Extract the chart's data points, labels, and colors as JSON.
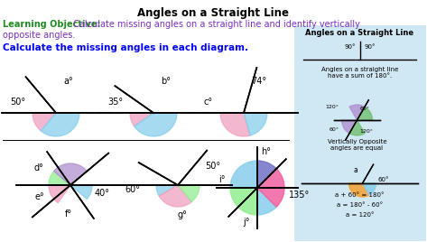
{
  "title": "Angles on a Straight Line",
  "learning_objective_label": "Learning Objective:",
  "learning_objective_text": " Calculate missing angles on a straight line and identify vertically\nopposite angles.",
  "instruction": "Calculate the missing angles in each diagram.",
  "sidebar_title": "Angles on a Straight Line",
  "sidebar_text1": "Angles on a straight line\nhave a sum of 180°.",
  "sidebar_text2": "Vertically Opposite\nangles are equal",
  "sidebar_eq1": "a + 60° = 180°",
  "sidebar_eq2": "a = 180° - 60°",
  "sidebar_eq3": "a = 120°",
  "color_pink": "#f0a0c0",
  "color_blue": "#87CEEB",
  "color_green": "#90EE90",
  "color_purple": "#B090D0",
  "color_orange": "#F4A030",
  "color_sidebar_bg": "#d0e8f4"
}
